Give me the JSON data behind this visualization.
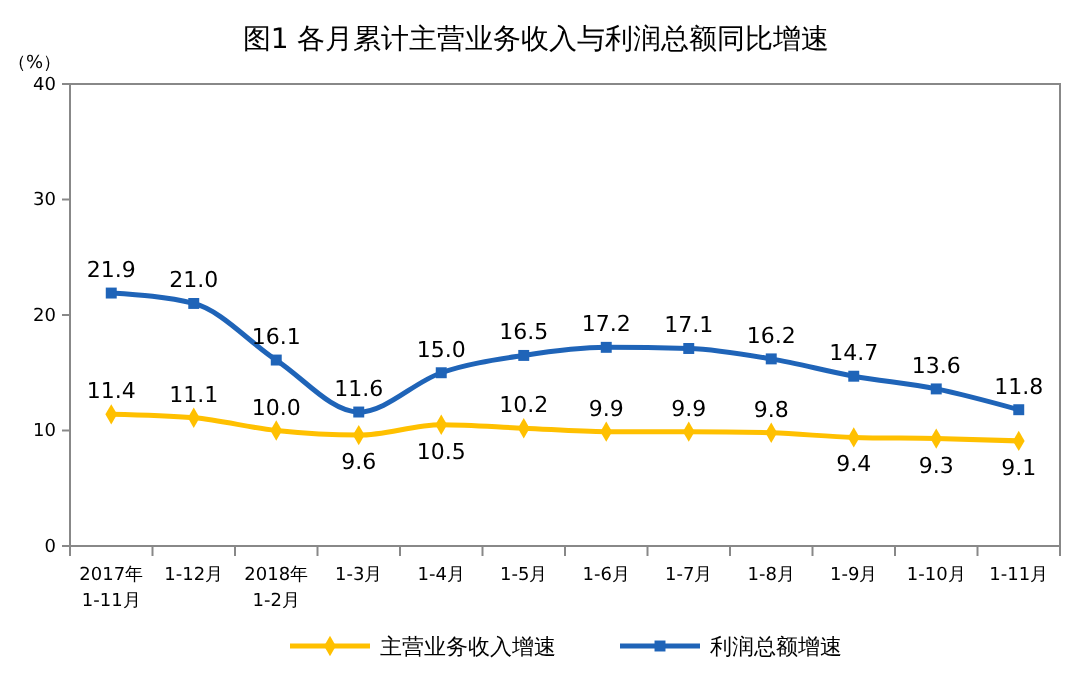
{
  "chart_data": {
    "type": "line",
    "title": "图1  各月累计主营业务收入与利润总额同比增速",
    "ylabel": "（%）",
    "categories": [
      "2017年\n1-11月",
      "1-12月",
      "2018年\n1-2月",
      "1-3月",
      "1-4月",
      "1-5月",
      "1-6月",
      "1-7月",
      "1-8月",
      "1-9月",
      "1-10月",
      "1-11月"
    ],
    "series": [
      {
        "name": "主营业务收入增速",
        "color": "#ffc000",
        "marker": "diamond",
        "values": [
          11.4,
          11.1,
          10.0,
          9.6,
          10.5,
          10.2,
          9.9,
          9.9,
          9.8,
          9.4,
          9.3,
          9.1
        ],
        "value_labels": [
          "11.4",
          "11.1",
          "10.0",
          "9.6",
          "10.5",
          "10.2",
          "9.9",
          "9.9",
          "9.8",
          "9.4",
          "9.3",
          "9.1"
        ]
      },
      {
        "name": "利润总额增速",
        "color": "#1f64b8",
        "marker": "square",
        "values": [
          21.9,
          21.0,
          16.1,
          11.6,
          15.0,
          16.5,
          17.2,
          17.1,
          16.2,
          14.7,
          13.6,
          11.8
        ],
        "value_labels": [
          "21.9",
          "21.0",
          "16.1",
          "11.6",
          "15.0",
          "16.5",
          "17.2",
          "17.1",
          "16.2",
          "14.7",
          "13.6",
          "11.8"
        ]
      }
    ],
    "ylim": [
      0,
      40
    ],
    "yticks": [
      0,
      10,
      20,
      30,
      40
    ],
    "grid": false,
    "legend": "bottom"
  }
}
